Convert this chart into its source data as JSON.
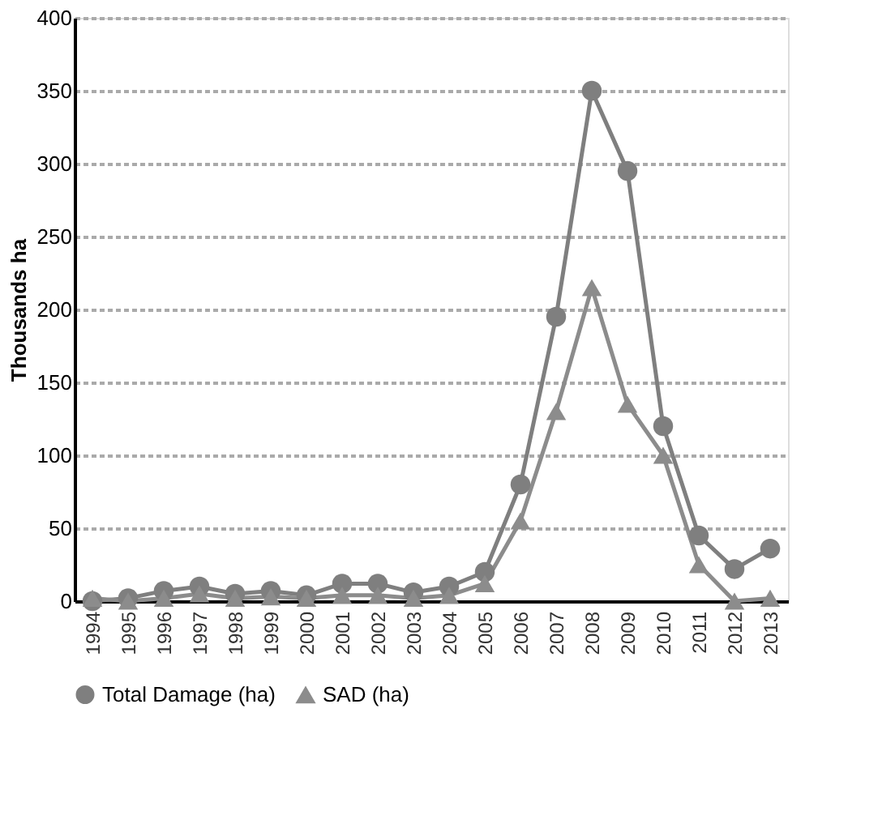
{
  "chart_data": {
    "type": "line",
    "ylabel": "Thousands ha",
    "categories": [
      "1994",
      "1995",
      "1996",
      "1997",
      "1998",
      "1999",
      "2000",
      "2001",
      "2002",
      "2003",
      "2004",
      "2005",
      "2006",
      "2007",
      "2008",
      "2009",
      "2010",
      "2011",
      "2012",
      "2013"
    ],
    "series": [
      {
        "name": "Total Damage (ha)",
        "color": "#7f7f7f",
        "marker": "circle",
        "values": [
          0,
          2,
          7,
          10,
          5,
          7,
          4,
          12,
          12,
          6,
          10,
          20,
          80,
          195,
          350,
          295,
          120,
          45,
          22,
          36
        ]
      },
      {
        "name": "SAD (ha)",
        "color": "#8c8c8c",
        "marker": "triangle",
        "values": [
          2,
          0,
          2,
          5,
          2,
          3,
          2,
          4,
          4,
          2,
          4,
          12,
          55,
          130,
          215,
          135,
          100,
          25,
          0,
          2
        ]
      }
    ],
    "ylim": [
      0,
      400
    ],
    "yticks": [
      0,
      50,
      100,
      150,
      200,
      250,
      300,
      350,
      400
    ],
    "grid": "y",
    "legend": "bottom"
  }
}
